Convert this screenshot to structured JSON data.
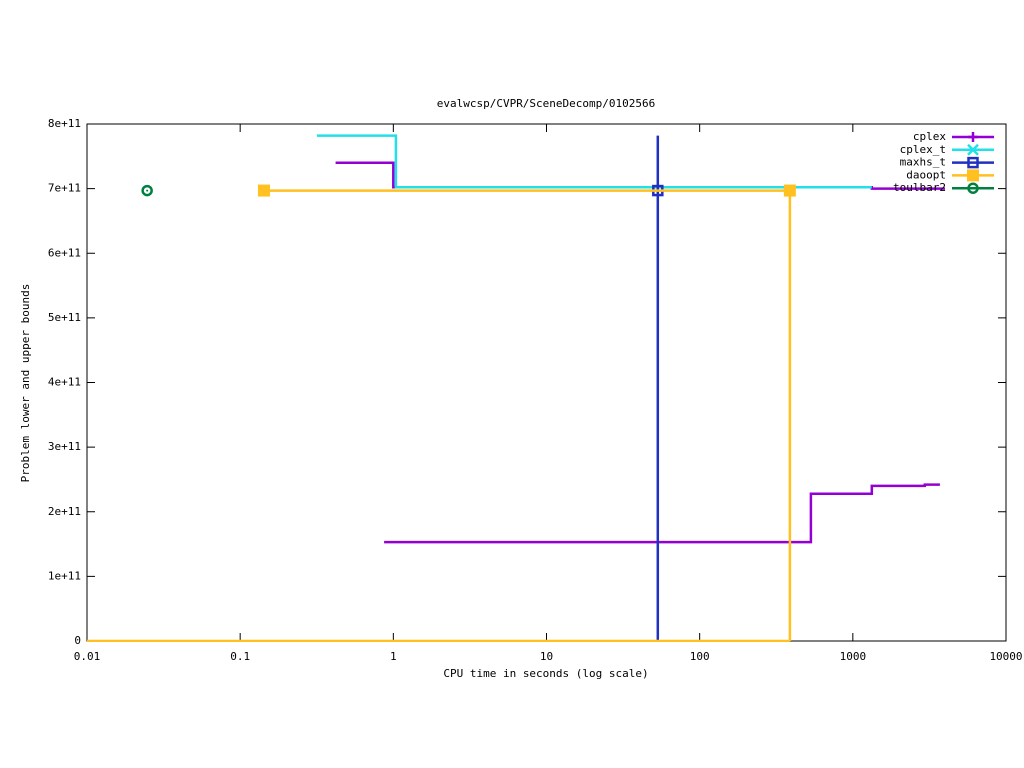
{
  "chart_data": {
    "type": "line",
    "title": "evalwcsp/CVPR/SceneDecomp/0102566",
    "x_label": "CPU time in seconds (log scale)",
    "y_label": "Problem lower and upper bounds",
    "x_log_scale": true,
    "xlim": [
      0.01,
      10000
    ],
    "xticks": [
      0.01,
      0.1,
      1,
      10,
      100,
      1000,
      10000
    ],
    "ylim": [
      0,
      800000000000
    ],
    "yticks": [
      0,
      {
        "value": 100000000000,
        "label": "1e+11"
      },
      {
        "value": 200000000000,
        "label": "2e+11"
      },
      {
        "value": 300000000000,
        "label": "3e+11"
      },
      {
        "value": 400000000000,
        "label": "4e+11"
      },
      {
        "value": 500000000000,
        "label": "5e+11"
      },
      {
        "value": 600000000000,
        "label": "6e+11"
      },
      {
        "value": 700000000000,
        "label": "7e+11"
      },
      {
        "value": 800000000000,
        "label": "8e+11"
      }
    ],
    "legend": "top-right",
    "series": [
      {
        "name": "cplex",
        "color": "#9400d3",
        "marker": "plus",
        "x": [
          0.42,
          1.0,
          1.0,
          1330,
          1330,
          4000,
          null,
          0.87,
          532,
          532,
          1330,
          1330,
          2950,
          2950,
          3700
        ],
        "values": [
          740000000000,
          740000000000,
          702000000000,
          702000000000,
          700000000000,
          700000000000,
          null,
          153000000000,
          153000000000,
          228000000000,
          228000000000,
          240000000000,
          240000000000,
          242000000000,
          242000000000
        ],
        "points": {
          "x": [],
          "values": []
        }
      },
      {
        "name": "cplex_t",
        "color": "#20e0e8",
        "marker": "cross",
        "x": [
          0.317,
          1.04,
          1.04,
          1330
        ],
        "values": [
          782000000000,
          782000000000,
          702000000000,
          702000000000
        ],
        "points": {
          "x": [],
          "values": []
        }
      },
      {
        "name": "maxhs_t",
        "color": "#2030c0",
        "marker": "square",
        "x": [
          53.3,
          53.3
        ],
        "values": [
          0,
          782000000000
        ],
        "points": {
          "x": [
            53.3
          ],
          "values": [
            697000000000
          ]
        }
      },
      {
        "name": "daoopt",
        "color": "#ffc020",
        "marker": "filled-square",
        "x": [
          0.143,
          388,
          388,
          null,
          0.01,
          388
        ],
        "values": [
          697000000000,
          697000000000,
          0,
          null,
          0,
          0
        ],
        "points": {
          "x": [
            0.143,
            388
          ],
          "values": [
            697000000000,
            697000000000
          ]
        }
      },
      {
        "name": "toulbar2",
        "color": "#008040",
        "marker": "circle",
        "x": [],
        "values": [],
        "points": {
          "x": [
            0.0247
          ],
          "values": [
            697000000000
          ]
        }
      }
    ]
  }
}
